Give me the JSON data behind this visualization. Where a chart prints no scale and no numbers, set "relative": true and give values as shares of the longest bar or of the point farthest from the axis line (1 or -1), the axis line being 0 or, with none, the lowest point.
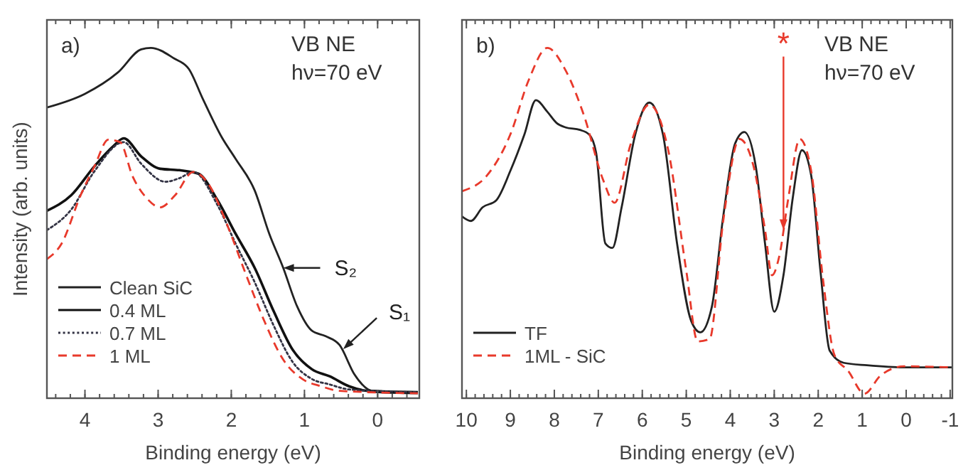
{
  "chart_data": [
    {
      "type": "line",
      "relative": true,
      "xlabel": "Binding energy (eV)",
      "ylabel": "Intensity (arb. units)",
      "xlim": [
        4.52,
        -0.57
      ],
      "xticks": [
        4,
        3,
        2,
        1,
        0
      ],
      "legend": "bottom left",
      "annotations": [
        "a)",
        "VB NE",
        "hν=70 eV",
        {
          "text": "S₂",
          "x": 1.29,
          "y": 0.372
        },
        {
          "text": "S₁",
          "x": 0.47,
          "y": 0.14
        }
      ],
      "series": [
        {
          "name": "Clean SiC",
          "color": "#222222",
          "line_style": "solid",
          "x": [
            4.52,
            4.0,
            3.55,
            3.23,
            3.1,
            2.78,
            2.58,
            2.39,
            2.13,
            1.94,
            1.68,
            1.48,
            1.29,
            1.1,
            0.9,
            0.71,
            0.52,
            0.32,
            0.13,
            0,
            -0.55
          ],
          "values": [
            0.83,
            0.869,
            0.93,
            0.996,
            1.0,
            0.97,
            0.94,
            0.855,
            0.745,
            0.683,
            0.593,
            0.469,
            0.372,
            0.262,
            0.193,
            0.177,
            0.152,
            0.069,
            0.025,
            0.017,
            0.014
          ]
        },
        {
          "name": "0.4 ML",
          "color": "#111111",
          "line_style": "solid",
          "x": [
            4.52,
            4.19,
            3.87,
            3.61,
            3.47,
            3.23,
            2.97,
            2.71,
            2.45,
            2.19,
            1.94,
            1.68,
            1.42,
            1.16,
            0.9,
            0.65,
            0.39,
            0.13,
            -0.55
          ],
          "values": [
            0.535,
            0.579,
            0.662,
            0.72,
            0.742,
            0.69,
            0.655,
            0.651,
            0.641,
            0.566,
            0.469,
            0.372,
            0.248,
            0.138,
            0.083,
            0.062,
            0.034,
            0.021,
            0.017
          ]
        },
        {
          "name": "0.7 ML",
          "color": "#333344",
          "line_style": "dotted",
          "x": [
            4.52,
            4.19,
            3.87,
            3.47,
            3.23,
            2.9,
            2.71,
            2.52,
            2.19,
            1.94,
            1.68,
            1.42,
            1.16,
            0.9,
            0.65,
            0.39,
            -0.55
          ],
          "values": [
            0.48,
            0.538,
            0.648,
            0.731,
            0.669,
            0.618,
            0.628,
            0.646,
            0.552,
            0.441,
            0.331,
            0.207,
            0.103,
            0.055,
            0.039,
            0.025,
            0.017
          ]
        },
        {
          "name": "1 ML",
          "color": "#e8392b",
          "line_style": "dashed",
          "x": [
            4.52,
            4.32,
            4.06,
            3.87,
            3.68,
            3.52,
            3.35,
            3.16,
            2.97,
            2.77,
            2.52,
            2.32,
            2.06,
            1.81,
            1.55,
            1.29,
            1.03,
            0.77,
            0.52,
            -0.55
          ],
          "values": [
            0.397,
            0.441,
            0.579,
            0.662,
            0.738,
            0.731,
            0.634,
            0.572,
            0.545,
            0.579,
            0.646,
            0.614,
            0.497,
            0.359,
            0.221,
            0.11,
            0.055,
            0.034,
            0.021,
            0.014
          ]
        }
      ]
    },
    {
      "type": "line",
      "relative": true,
      "xlabel": "Binding energy (eV)",
      "xlim": [
        10.1,
        -1.05
      ],
      "xticks": [
        10,
        9,
        8,
        7,
        6,
        5,
        4,
        3,
        2,
        1,
        0,
        -1
      ],
      "legend": "bottom left",
      "annotations": [
        "b)",
        "VB NE",
        "hν=70 eV",
        {
          "text": "*",
          "x": 2.79,
          "y": 0.48
        }
      ],
      "series": [
        {
          "name": "TF",
          "color": "#222222",
          "line_style": "solid",
          "x": [
            10.1,
            9.9,
            9.63,
            9.32,
            9.0,
            8.68,
            8.42,
            8.16,
            7.95,
            7.74,
            7.42,
            7.21,
            7.05,
            6.84,
            6.68,
            6.47,
            6.16,
            5.84,
            5.53,
            5.21,
            4.89,
            4.68,
            4.42,
            4.16,
            3.89,
            3.68,
            3.42,
            3.21,
            3.0,
            2.79,
            2.58,
            2.37,
            2.16,
            1.95,
            1.74,
            1.42,
            0.89,
            0.05,
            -1.05
          ],
          "values": [
            0.519,
            0.506,
            0.545,
            0.565,
            0.649,
            0.753,
            0.851,
            0.818,
            0.786,
            0.773,
            0.766,
            0.753,
            0.701,
            0.442,
            0.429,
            0.545,
            0.753,
            0.844,
            0.753,
            0.442,
            0.221,
            0.188,
            0.26,
            0.519,
            0.727,
            0.76,
            0.662,
            0.442,
            0.247,
            0.351,
            0.571,
            0.708,
            0.636,
            0.364,
            0.136,
            0.101,
            0.094,
            0.088,
            0.088
          ]
        },
        {
          "name": "1ML - SiC",
          "color": "#e8392b",
          "line_style": "dashed",
          "x": [
            10.1,
            9.53,
            9.0,
            8.58,
            8.16,
            7.74,
            7.32,
            6.89,
            6.63,
            6.26,
            5.84,
            5.42,
            5.0,
            4.74,
            4.47,
            4.16,
            3.79,
            3.47,
            3.21,
            3.05,
            2.89,
            2.68,
            2.42,
            2.16,
            1.89,
            1.63,
            1.32,
            0.95,
            0.58,
            0.05,
            -1.05
          ],
          "values": [
            0.591,
            0.636,
            0.753,
            0.909,
            1.0,
            0.935,
            0.805,
            0.623,
            0.558,
            0.727,
            0.838,
            0.714,
            0.364,
            0.162,
            0.169,
            0.506,
            0.74,
            0.662,
            0.481,
            0.351,
            0.403,
            0.571,
            0.74,
            0.649,
            0.338,
            0.123,
            0.078,
            0.013,
            0.065,
            0.091,
            0.088
          ]
        }
      ]
    }
  ]
}
